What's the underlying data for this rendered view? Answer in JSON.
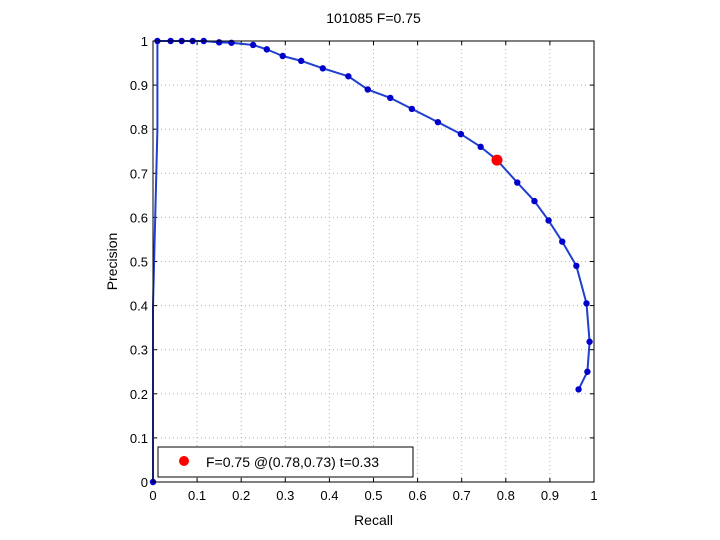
{
  "chart_data": {
    "type": "line",
    "title": "101085 F=0.75",
    "xlabel": "Recall",
    "ylabel": "Precision",
    "xlim": [
      0,
      1
    ],
    "ylim": [
      0,
      1
    ],
    "grid": true,
    "legend_placement": "bottom-left",
    "xticks": [
      0,
      0.1,
      0.2,
      0.3,
      0.4,
      0.5,
      0.6,
      0.7,
      0.8,
      0.9,
      1
    ],
    "yticks": [
      0,
      0.1,
      0.2,
      0.3,
      0.4,
      0.5,
      0.6,
      0.7,
      0.8,
      0.9,
      1
    ],
    "xtick_labels": [
      "0",
      "0.1",
      "0.2",
      "0.3",
      "0.4",
      "0.5",
      "0.6",
      "0.7",
      "0.8",
      "0.9",
      "1"
    ],
    "ytick_labels": [
      "0",
      "0.1",
      "0.2",
      "0.3",
      "0.4",
      "0.5",
      "0.6",
      "0.7",
      "0.8",
      "0.9",
      "1"
    ],
    "series": [
      {
        "color": "#0000cc",
        "line_color": "#1f3fd0",
        "x": [
          0,
          0.0,
          0.0,
          0.01,
          0.01,
          0.04,
          0.065,
          0.09,
          0.115,
          0.15,
          0.178,
          0.227,
          0.258,
          0.294,
          0.336,
          0.385,
          0.443,
          0.487,
          0.538,
          0.587,
          0.646,
          0.698,
          0.743,
          0.78,
          0.826,
          0.865,
          0.897,
          0.928,
          0.96,
          0.983,
          0.99,
          0.985,
          0.965
        ],
        "y": [
          0,
          0.14,
          0.4,
          0.8,
          1.0,
          1.0,
          1.0,
          1.0,
          1.0,
          0.997,
          0.996,
          0.991,
          0.981,
          0.966,
          0.955,
          0.938,
          0.92,
          0.89,
          0.871,
          0.846,
          0.816,
          0.789,
          0.76,
          0.73,
          0.679,
          0.637,
          0.593,
          0.545,
          0.49,
          0.405,
          0.318,
          0.25,
          0.21
        ],
        "markers": [
          true,
          false,
          false,
          false,
          true,
          true,
          true,
          true,
          true,
          true,
          true,
          true,
          true,
          true,
          true,
          true,
          true,
          true,
          true,
          true,
          true,
          true,
          true,
          true,
          true,
          true,
          true,
          true,
          true,
          true,
          true,
          true,
          true
        ]
      }
    ],
    "highlight_point": {
      "x": 0.78,
      "y": 0.73,
      "color": "#ff0000"
    },
    "legend": {
      "label": "F=0.75 @(0.78,0.73) t=0.33",
      "marker_color": "#ff0000"
    }
  }
}
